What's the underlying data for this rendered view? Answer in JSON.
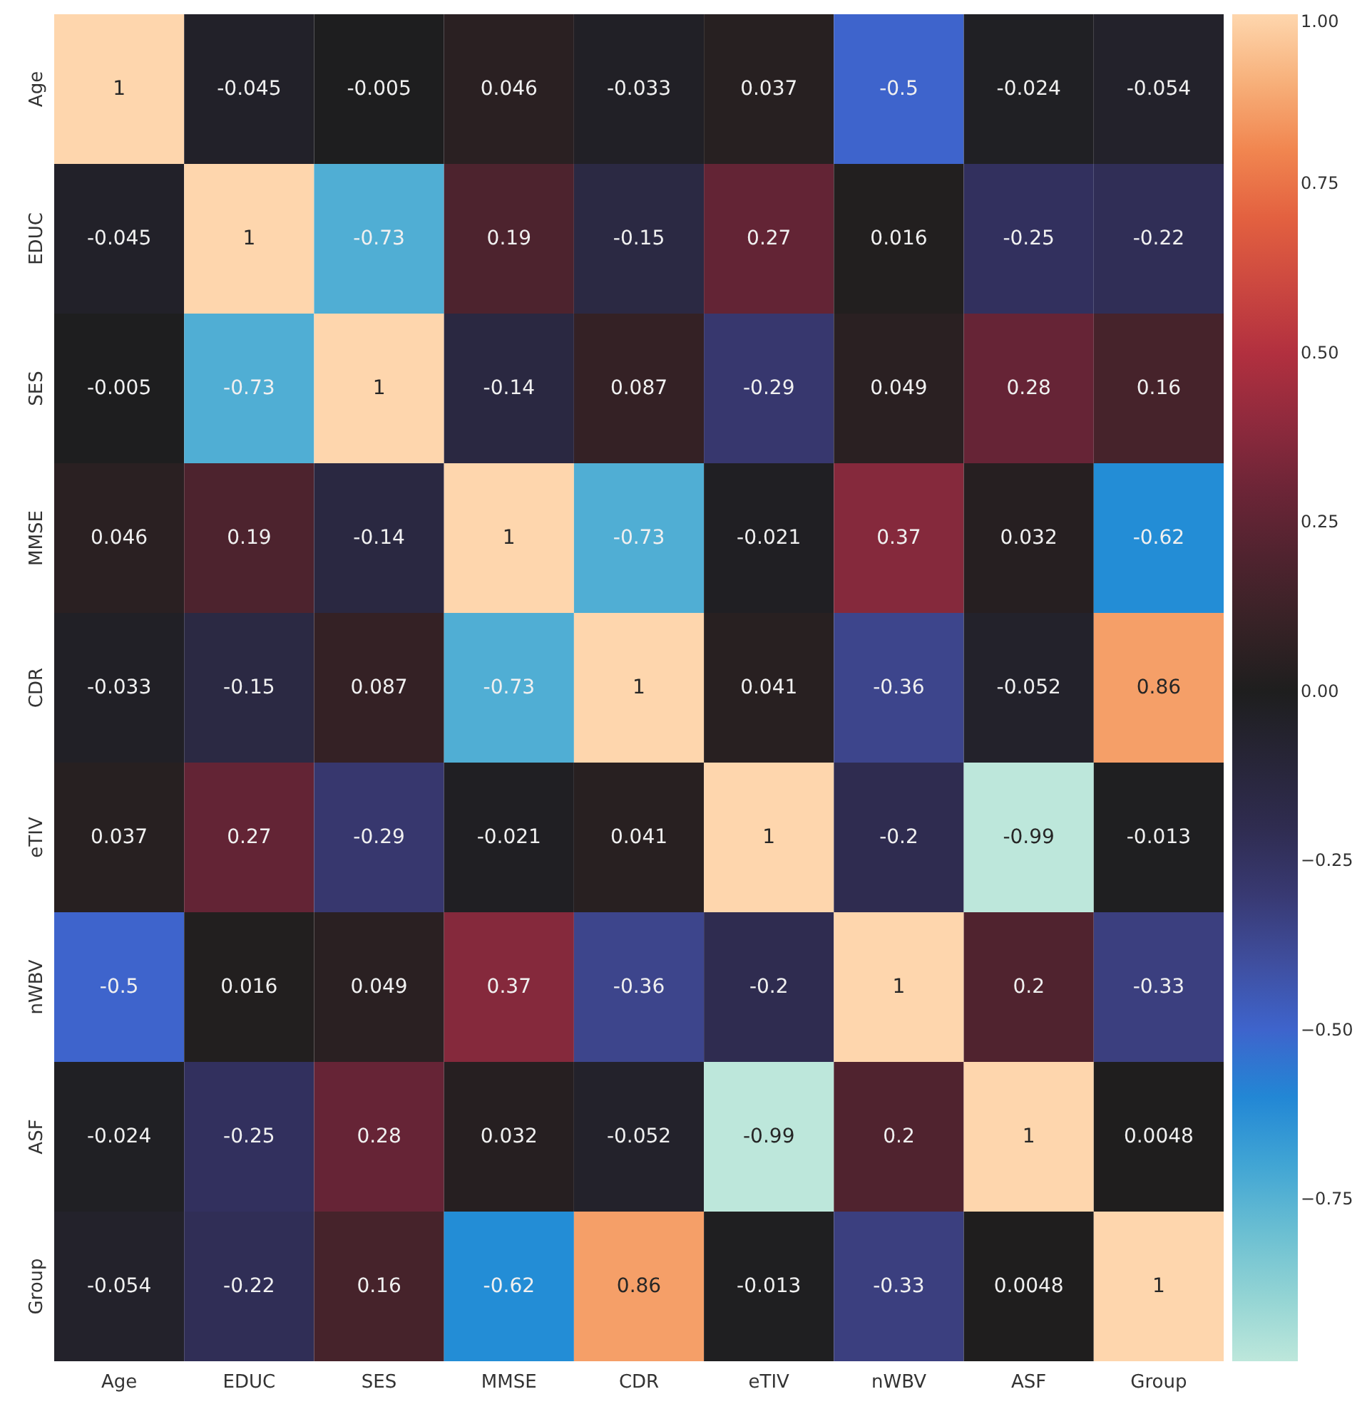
{
  "chart_data": {
    "type": "heatmap",
    "categories": [
      "Age",
      "EDUC",
      "SES",
      "MMSE",
      "CDR",
      "eTIV",
      "nWBV",
      "ASF",
      "Group"
    ],
    "y_categories": [
      "Age",
      "EDUC",
      "SES",
      "MMSE",
      "CDR",
      "eTIV",
      "nWBV",
      "ASF",
      "Group"
    ],
    "cells": [
      [
        1,
        -0.045,
        -0.005,
        0.046,
        -0.033,
        0.037,
        -0.5,
        -0.024,
        -0.054
      ],
      [
        -0.045,
        1,
        -0.73,
        0.19,
        -0.15,
        0.27,
        0.016,
        -0.25,
        -0.22
      ],
      [
        -0.005,
        -0.73,
        1,
        -0.14,
        0.087,
        -0.29,
        0.049,
        0.28,
        0.16
      ],
      [
        0.046,
        0.19,
        -0.14,
        1,
        -0.73,
        -0.021,
        0.37,
        0.032,
        -0.62
      ],
      [
        -0.033,
        -0.15,
        0.087,
        -0.73,
        1,
        0.041,
        -0.36,
        -0.052,
        0.86
      ],
      [
        0.037,
        0.27,
        -0.29,
        -0.021,
        0.041,
        1,
        -0.2,
        -0.99,
        -0.013
      ],
      [
        -0.5,
        0.016,
        0.049,
        0.37,
        -0.36,
        -0.2,
        1,
        0.2,
        -0.33
      ],
      [
        -0.024,
        -0.25,
        0.28,
        0.032,
        -0.052,
        -0.99,
        0.2,
        1,
        0.0048
      ],
      [
        -0.054,
        -0.22,
        0.16,
        -0.62,
        0.86,
        -0.013,
        -0.33,
        0.0048,
        1
      ]
    ],
    "clim": [
      -0.99,
      1
    ],
    "cticks": [
      {
        "value": -0.75,
        "label": "−0.75"
      },
      {
        "value": -0.5,
        "label": "−0.50"
      },
      {
        "value": -0.25,
        "label": "−0.25"
      },
      {
        "value": 0,
        "label": "0.00"
      },
      {
        "value": 0.25,
        "label": "0.25"
      },
      {
        "value": 0.5,
        "label": "0.50"
      },
      {
        "value": 0.75,
        "label": "0.75"
      },
      {
        "value": 1,
        "label": "1.00"
      }
    ],
    "data_labels": true
  }
}
